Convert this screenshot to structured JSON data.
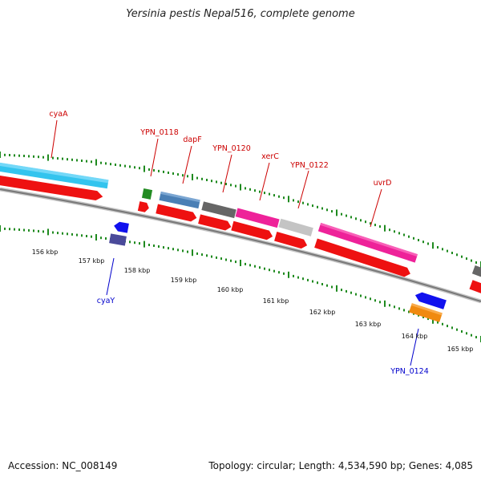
{
  "title": "Yersinia pestis Nepal516, complete genome",
  "footer": {
    "accession": "Accession: NC_008149",
    "stats": "Topology: circular; Length: 4,534,590 bp; Genes: 4,085"
  },
  "colors": {
    "backbone": "#8a8a8a",
    "tick_dots": "#1f8a1f",
    "label_top": "#cc0000",
    "label_bottom": "#0000cc"
  },
  "scale_labels": [
    "156 kbp",
    "157 kbp",
    "158 kbp",
    "159 kbp",
    "160 kbp",
    "161 kbp",
    "162 kbp",
    "163 kbp",
    "164 kbp",
    "165 kbp"
  ],
  "gene_labels_top": [
    "cyaA",
    "YPN_0118",
    "dapF",
    "YPN_0120",
    "xerC",
    "YPN_0122",
    "uvrD"
  ],
  "gene_labels_bottom": [
    "cyaY",
    "YPN_0124"
  ],
  "feature_colors": {
    "cyan": "#33c4ee",
    "red": "#ee1111",
    "green": "#228b22",
    "steel": "#4a7fb5",
    "grey": "#666666",
    "magenta": "#ee2299",
    "lightgrey": "#c4c4c4",
    "blue": "#1111ee",
    "navy": "#4a4a9a",
    "orange": "#f08a10"
  }
}
